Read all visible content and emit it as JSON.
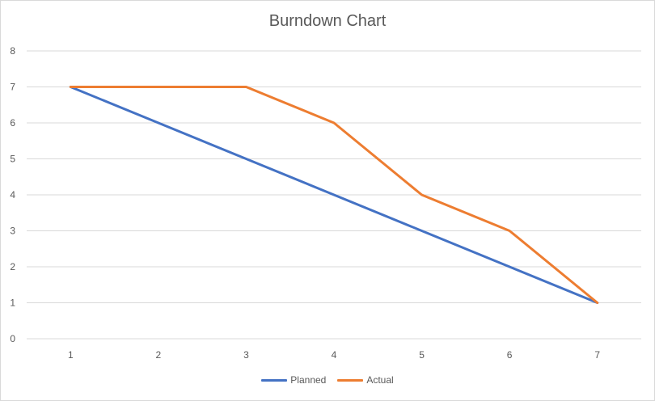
{
  "chart_data": {
    "type": "line",
    "title": "Burndown Chart",
    "xlabel": "",
    "ylabel": "",
    "x": [
      1,
      2,
      3,
      4,
      5,
      6,
      7
    ],
    "ylim": [
      0,
      8
    ],
    "yticks": [
      0,
      1,
      2,
      3,
      4,
      5,
      6,
      7,
      8
    ],
    "grid": true,
    "legend_position": "bottom",
    "series": [
      {
        "name": "Planned",
        "color": "#4472c4",
        "values": [
          7,
          6,
          5,
          4,
          3,
          2,
          1
        ]
      },
      {
        "name": "Actual",
        "color": "#ed7d31",
        "values": [
          7,
          7,
          7,
          6,
          4,
          3,
          1
        ]
      }
    ]
  }
}
